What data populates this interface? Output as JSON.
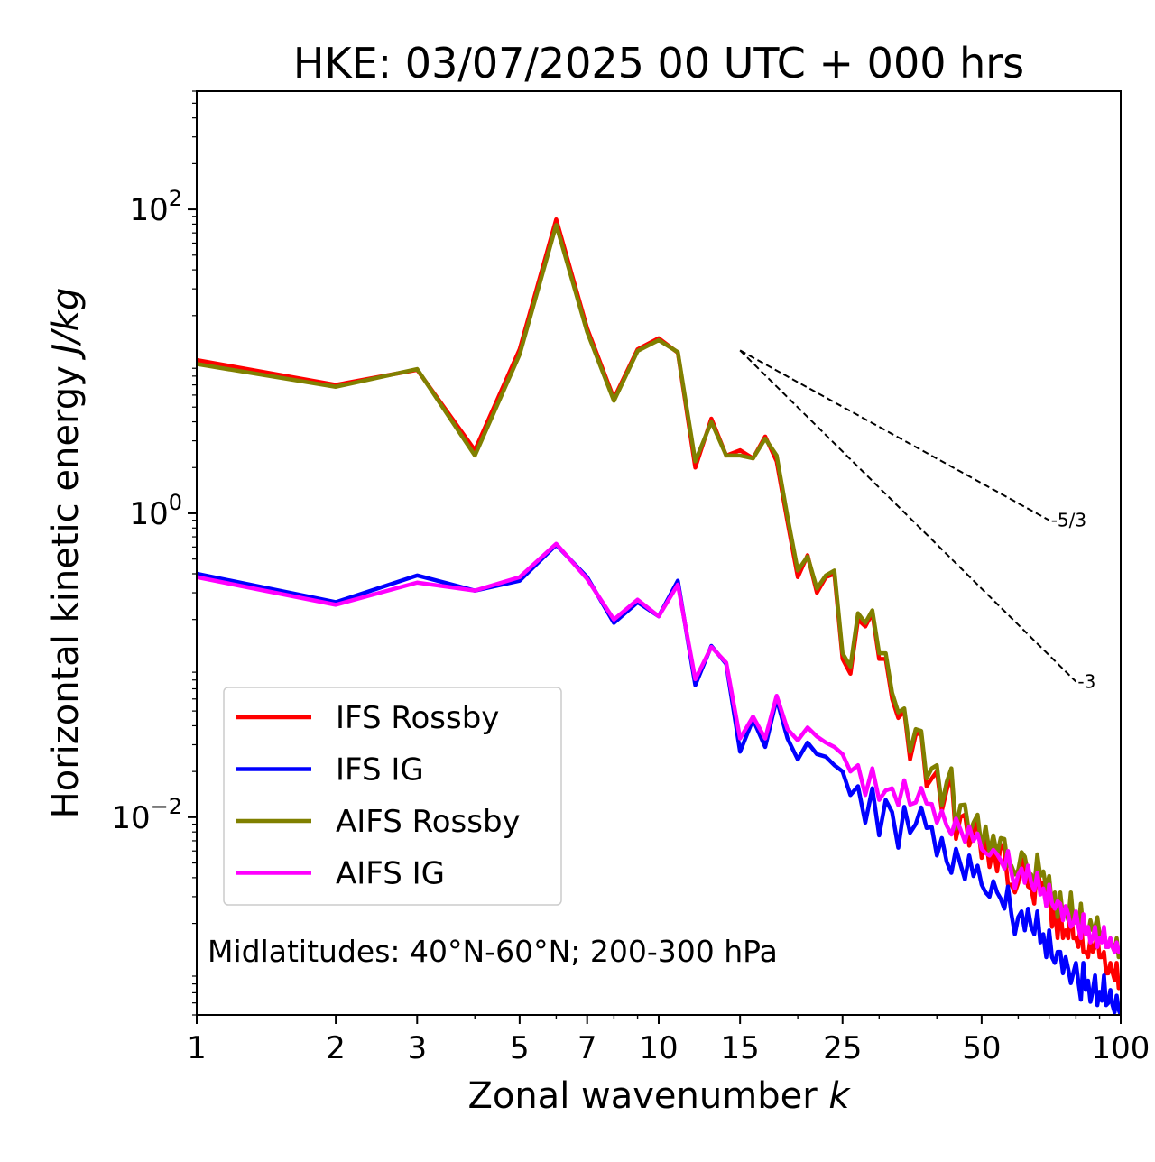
{
  "chart_data": {
    "type": "line",
    "title": "HKE: 03/07/2025 00 UTC + 000 hrs",
    "xlabel": "Zonal wavenumber",
    "xlabel_italic": "k",
    "ylabel": "Horizontal kinetic energy",
    "ylabel_italic": "J/kg",
    "xscale": "log",
    "yscale": "log",
    "xlim": [
      1,
      100
    ],
    "ylim": [
      0.0005,
      600
    ],
    "x_ticks": [
      1,
      2,
      3,
      5,
      7,
      10,
      15,
      25,
      50,
      100
    ],
    "x_tick_labels": [
      "1",
      "2",
      "3",
      "5",
      "7",
      "10",
      "15",
      "25",
      "50",
      "100"
    ],
    "y_ticks": [
      0.01,
      1,
      100
    ],
    "y_tick_labels": [
      {
        "base": "10",
        "exp": "−2"
      },
      {
        "base": "10",
        "exp": "0"
      },
      {
        "base": "10",
        "exp": "2"
      }
    ],
    "annotation": "Midlatitudes: 40°N-60°N; 200-300 hPa",
    "legend_position": "lower-left",
    "reference_lines": [
      {
        "label": "-5/3",
        "slope": -1.6667,
        "x": [
          15,
          70
        ],
        "y": [
          11.8,
          0.9
        ]
      },
      {
        "label": "-3",
        "slope": -3,
        "x": [
          15,
          80
        ],
        "y": [
          11.8,
          0.078
        ]
      }
    ],
    "series": [
      {
        "name": "IFS Rossby",
        "color": "#ff0000",
        "x": [
          1,
          2,
          3,
          4,
          5,
          6,
          7,
          8,
          9,
          10,
          11,
          12,
          13,
          14,
          15,
          16,
          17,
          18,
          19,
          20,
          21,
          22,
          23,
          24,
          25,
          26,
          27,
          28,
          29,
          30,
          31,
          32,
          33,
          34,
          35,
          36,
          37,
          38,
          39,
          40,
          41,
          42,
          43,
          44,
          45,
          46,
          47,
          48,
          49,
          50,
          51,
          52,
          53,
          54,
          55,
          56,
          57,
          58,
          59,
          60,
          61,
          62,
          63,
          64,
          65,
          66,
          67,
          68,
          69,
          70,
          71,
          72,
          73,
          74,
          75,
          76,
          77,
          78,
          79,
          80,
          81,
          82,
          83,
          84,
          85,
          86,
          87,
          88,
          89,
          90,
          91,
          92,
          93,
          94,
          95,
          96,
          97,
          98,
          99,
          100
        ],
        "y": [
          10.2,
          7.0,
          8.8,
          2.6,
          12.0,
          86,
          16.5,
          5.7,
          12.0,
          14.2,
          11.4,
          2.0,
          4.2,
          2.4,
          2.6,
          2.3,
          3.2,
          2.2,
          0.88,
          0.38,
          0.53,
          0.3,
          0.38,
          0.4,
          0.11,
          0.088,
          0.2,
          0.18,
          0.22,
          0.11,
          0.11,
          0.06,
          0.045,
          0.05,
          0.024,
          0.035,
          0.036,
          0.016,
          0.018,
          0.02,
          0.011,
          0.015,
          0.019,
          0.0072,
          0.01,
          0.0104,
          0.0065,
          0.0079,
          0.0092,
          0.0054,
          0.0075,
          0.0047,
          0.0062,
          0.0044,
          0.0066,
          0.0061,
          0.0036,
          0.0036,
          0.0032,
          0.0037,
          0.0053,
          0.0047,
          0.0035,
          0.0034,
          0.0027,
          0.0052,
          0.0034,
          0.0037,
          0.0026,
          0.0034,
          0.0019,
          0.0025,
          0.0016,
          0.0026,
          0.0016,
          0.0018,
          0.0016,
          0.0027,
          0.0016,
          0.0016,
          0.0014,
          0.0021,
          0.0013,
          0.0013,
          0.0012,
          0.0016,
          0.0013,
          0.0014,
          0.0017,
          0.0012,
          0.0012,
          0.0013,
          0.00094,
          0.00094,
          0.0011,
          0.00095,
          0.00085,
          0.0011,
          0.00075,
          0.00085
        ]
      },
      {
        "name": "IFS IG",
        "color": "#0000ff",
        "x": [
          1,
          2,
          3,
          4,
          5,
          6,
          7,
          8,
          9,
          10,
          11,
          12,
          13,
          14,
          15,
          16,
          17,
          18,
          19,
          20,
          21,
          22,
          23,
          24,
          25,
          26,
          27,
          28,
          29,
          30,
          31,
          32,
          33,
          34,
          35,
          36,
          37,
          38,
          39,
          40,
          41,
          42,
          43,
          44,
          45,
          46,
          47,
          48,
          49,
          50,
          51,
          52,
          53,
          54,
          55,
          56,
          57,
          58,
          59,
          60,
          61,
          62,
          63,
          64,
          65,
          66,
          67,
          68,
          69,
          70,
          71,
          72,
          73,
          74,
          75,
          76,
          77,
          78,
          79,
          80,
          81,
          82,
          83,
          84,
          85,
          86,
          87,
          88,
          89,
          90,
          91,
          92,
          93,
          94,
          95,
          96,
          97,
          98,
          99,
          100
        ],
        "y": [
          0.4,
          0.26,
          0.39,
          0.31,
          0.36,
          0.62,
          0.38,
          0.19,
          0.26,
          0.21,
          0.36,
          0.074,
          0.134,
          0.102,
          0.027,
          0.044,
          0.029,
          0.06,
          0.033,
          0.024,
          0.031,
          0.026,
          0.025,
          0.022,
          0.02,
          0.014,
          0.016,
          0.0092,
          0.0155,
          0.0076,
          0.013,
          0.0108,
          0.0063,
          0.0117,
          0.0079,
          0.009,
          0.0116,
          0.0085,
          0.0086,
          0.0056,
          0.0073,
          0.0051,
          0.0043,
          0.0062,
          0.0049,
          0.0039,
          0.0056,
          0.0041,
          0.0048,
          0.0036,
          0.0032,
          0.003,
          0.0038,
          0.0032,
          0.0029,
          0.0025,
          0.0035,
          0.0023,
          0.0017,
          0.0022,
          0.0024,
          0.0018,
          0.0025,
          0.0019,
          0.0017,
          0.0024,
          0.0015,
          0.0017,
          0.0012,
          0.0018,
          0.0012,
          0.0011,
          0.0013,
          0.0013,
          0.00094,
          0.0012,
          0.001,
          0.00081,
          0.00095,
          0.0011,
          0.00082,
          0.00063,
          0.0011,
          0.00073,
          0.00084,
          0.00061,
          0.00072,
          0.00091,
          0.00058,
          0.00071,
          0.00062,
          0.00091,
          0.00058,
          0.0006,
          0.00073,
          0.00058,
          0.00052,
          0.00067,
          0.00054,
          0.0005
        ]
      },
      {
        "name": "AIFS Rossby",
        "color": "#808000",
        "x": [
          1,
          2,
          3,
          4,
          5,
          6,
          7,
          8,
          9,
          10,
          11,
          12,
          13,
          14,
          15,
          16,
          17,
          18,
          19,
          20,
          21,
          22,
          23,
          24,
          25,
          26,
          27,
          28,
          29,
          30,
          31,
          32,
          33,
          34,
          35,
          36,
          37,
          38,
          39,
          40,
          41,
          42,
          43,
          44,
          45,
          46,
          47,
          48,
          49,
          50,
          51,
          52,
          53,
          54,
          55,
          56,
          57,
          58,
          59,
          60,
          61,
          62,
          63,
          64,
          65,
          66,
          67,
          68,
          69,
          70,
          71,
          72,
          73,
          74,
          75,
          76,
          77,
          78,
          79,
          80,
          81,
          82,
          83,
          84,
          85,
          86,
          87,
          88,
          89,
          90,
          91,
          92,
          93,
          94,
          95,
          96,
          97,
          98,
          99,
          100
        ],
        "y": [
          9.6,
          6.8,
          8.9,
          2.4,
          11.1,
          79,
          15.6,
          5.5,
          11.7,
          13.8,
          11.5,
          2.2,
          4.0,
          2.4,
          2.4,
          2.3,
          3.1,
          2.4,
          0.95,
          0.42,
          0.52,
          0.32,
          0.39,
          0.42,
          0.12,
          0.098,
          0.22,
          0.19,
          0.23,
          0.12,
          0.12,
          0.066,
          0.049,
          0.052,
          0.027,
          0.038,
          0.037,
          0.018,
          0.021,
          0.022,
          0.012,
          0.017,
          0.021,
          0.0084,
          0.012,
          0.0121,
          0.0078,
          0.0092,
          0.0104,
          0.0062,
          0.0087,
          0.0059,
          0.0076,
          0.0057,
          0.0073,
          0.0072,
          0.0048,
          0.0048,
          0.0042,
          0.0045,
          0.0059,
          0.0055,
          0.0043,
          0.0042,
          0.0035,
          0.0057,
          0.0041,
          0.0044,
          0.0034,
          0.0041,
          0.0026,
          0.0032,
          0.0022,
          0.0032,
          0.0022,
          0.0024,
          0.0021,
          0.0032,
          0.0021,
          0.0021,
          0.0019,
          0.0027,
          0.0018,
          0.0018,
          0.0017,
          0.0021,
          0.0018,
          0.0019,
          0.0022,
          0.0017,
          0.0017,
          0.0018,
          0.0014,
          0.0014,
          0.0016,
          0.0014,
          0.0013,
          0.0016,
          0.0012,
          0.0013
        ]
      },
      {
        "name": "AIFS IG",
        "color": "#ff00ff",
        "x": [
          1,
          2,
          3,
          4,
          5,
          6,
          7,
          8,
          9,
          10,
          11,
          12,
          13,
          14,
          15,
          16,
          17,
          18,
          19,
          20,
          21,
          22,
          23,
          24,
          25,
          26,
          27,
          28,
          29,
          30,
          31,
          32,
          33,
          34,
          35,
          36,
          37,
          38,
          39,
          40,
          41,
          42,
          43,
          44,
          45,
          46,
          47,
          48,
          49,
          50,
          51,
          52,
          53,
          54,
          55,
          56,
          57,
          58,
          59,
          60,
          61,
          62,
          63,
          64,
          65,
          66,
          67,
          68,
          69,
          70,
          71,
          72,
          73,
          74,
          75,
          76,
          77,
          78,
          79,
          80,
          81,
          82,
          83,
          84,
          85,
          86,
          87,
          88,
          89,
          90,
          91,
          92,
          93,
          94,
          95,
          96,
          97,
          98,
          99,
          100
        ],
        "y": [
          0.38,
          0.25,
          0.35,
          0.31,
          0.38,
          0.63,
          0.37,
          0.2,
          0.27,
          0.21,
          0.34,
          0.081,
          0.132,
          0.104,
          0.033,
          0.046,
          0.033,
          0.063,
          0.038,
          0.032,
          0.039,
          0.034,
          0.031,
          0.029,
          0.026,
          0.02,
          0.022,
          0.014,
          0.021,
          0.013,
          0.015,
          0.0155,
          0.012,
          0.0175,
          0.0121,
          0.0125,
          0.0156,
          0.0123,
          0.0122,
          0.0092,
          0.011,
          0.0088,
          0.0077,
          0.0098,
          0.0083,
          0.0069,
          0.0087,
          0.007,
          0.0078,
          0.0062,
          0.0058,
          0.0056,
          0.0061,
          0.0057,
          0.0052,
          0.0046,
          0.006,
          0.0043,
          0.0034,
          0.0042,
          0.0046,
          0.0037,
          0.0048,
          0.0037,
          0.0033,
          0.0043,
          0.0031,
          0.0034,
          0.0026,
          0.0036,
          0.0027,
          0.0025,
          0.0028,
          0.0027,
          0.0021,
          0.0026,
          0.0023,
          0.0019,
          0.002,
          0.0024,
          0.0019,
          0.0016,
          0.0023,
          0.0017,
          0.0019,
          0.0015,
          0.0016,
          0.0019,
          0.0014,
          0.0016,
          0.0015,
          0.0019,
          0.0014,
          0.0014,
          0.0016,
          0.0014,
          0.0013,
          0.0015,
          0.0013,
          0.0014
        ]
      }
    ]
  }
}
